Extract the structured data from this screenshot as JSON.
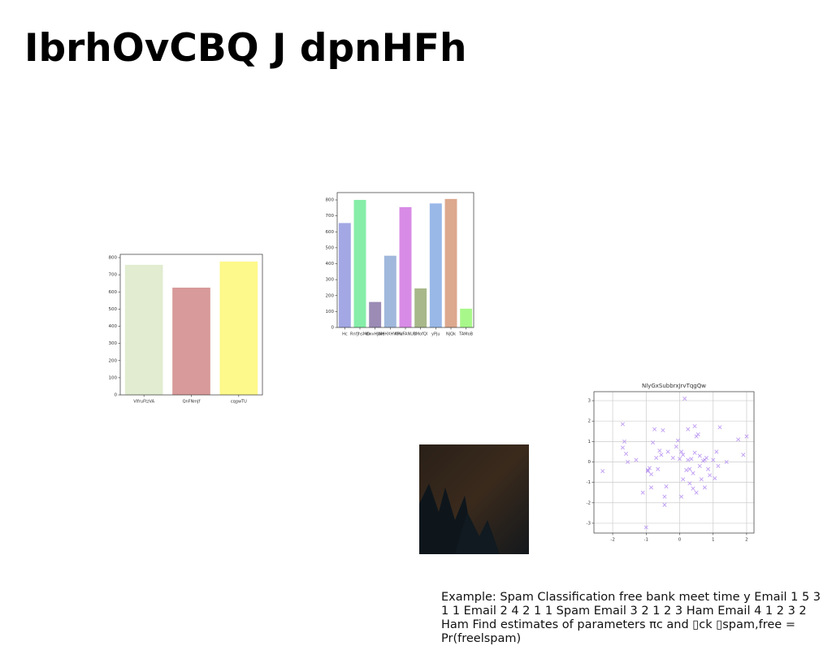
{
  "title": "IbrhOvCBQ J dpnHFh",
  "text": "Example: Spam Classification free bank meet time y Email 1 5 3 1 1 Email 2 4 2 1 1 Spam Email 3 2 1 2 3 Ham Email 4 1 2 3 2 Ham Find estimates of parameters πc and ▯ck ▯spam,free = Pr(freelspam)",
  "chart_data": [
    {
      "type": "bar",
      "categories": [
        "VIfruFtzVA",
        "QnFNmJf",
        "cqgwTU"
      ],
      "values": [
        758,
        625,
        777
      ],
      "colors": [
        "#e1ecd0",
        "#d89a9a",
        "#fdf98a"
      ],
      "ylim": [
        0,
        819
      ],
      "yticks": [
        0,
        100,
        200,
        300,
        400,
        500,
        600,
        700,
        800
      ],
      "grid": false
    },
    {
      "type": "bar",
      "categories": [
        "Hc",
        "RnfJhsMO",
        "dwvHJaM",
        "lNeHXHVmx",
        "KPUFANUR",
        "sMofQl",
        "yPju",
        "NjQk",
        "TAMoB"
      ],
      "values": [
        655,
        800,
        160,
        450,
        755,
        245,
        778,
        806,
        118
      ],
      "colors": [
        "#a3a8e4",
        "#86eea8",
        "#9b8bb5",
        "#a0b8dc",
        "#d88be6",
        "#a8b88a",
        "#99b8e8",
        "#dca88e",
        "#a8f78a"
      ],
      "ylim": [
        0,
        846
      ],
      "yticks": [
        0,
        100,
        200,
        300,
        400,
        500,
        600,
        700,
        800
      ],
      "grid": false
    },
    {
      "type": "scatter",
      "title": "NlyGxSubbrxJrvTqgQw",
      "color": "#b48cf0",
      "x": [
        -2.3,
        -1.7,
        -1.65,
        -1.7,
        -1.6,
        -1.55,
        -1.3,
        -1.1,
        -1.0,
        -0.95,
        -0.9,
        -0.85,
        -0.85,
        -0.8,
        -0.75,
        -0.7,
        -0.6,
        -0.55,
        -0.5,
        -0.45,
        -0.45,
        -0.4,
        -0.35,
        -0.2,
        -0.1,
        -0.05,
        0.0,
        0.05,
        0.05,
        0.1,
        0.1,
        0.15,
        0.2,
        0.25,
        0.25,
        0.3,
        0.3,
        0.4,
        0.4,
        0.45,
        0.45,
        0.5,
        0.5,
        0.55,
        0.6,
        0.6,
        0.65,
        0.7,
        0.75,
        0.8,
        0.85,
        0.9,
        1.0,
        1.05,
        1.1,
        1.15,
        1.2,
        1.4,
        1.75,
        1.9,
        2.0,
        -0.95,
        0.75,
        -0.65,
        0.35
      ],
      "values": [
        -0.45,
        1.85,
        1.0,
        0.7,
        0.4,
        0.0,
        0.1,
        -1.5,
        -3.2,
        -0.4,
        -0.3,
        -0.6,
        -1.25,
        0.95,
        1.6,
        0.2,
        0.55,
        0.35,
        1.55,
        -1.7,
        -2.1,
        -1.2,
        0.5,
        0.2,
        0.75,
        1.05,
        0.15,
        0.5,
        -1.7,
        0.35,
        -0.85,
        3.1,
        -0.4,
        1.6,
        0.1,
        -0.35,
        -1.05,
        -0.55,
        -1.3,
        1.75,
        0.45,
        1.25,
        -1.5,
        1.35,
        0.3,
        -0.2,
        -0.85,
        0.05,
        -1.25,
        0.2,
        -0.35,
        -0.65,
        0.1,
        -0.8,
        0.5,
        -0.2,
        1.7,
        0.0,
        1.1,
        0.35,
        1.25,
        -0.45,
        0.1,
        -0.35,
        0.15
      ],
      "xlim": [
        -2.56,
        2.22
      ],
      "ylim": [
        -3.48,
        3.44
      ],
      "xticks": [
        -2,
        -1,
        0,
        1,
        2
      ],
      "yticks": [
        -3,
        -2,
        -1,
        0,
        1,
        2,
        3
      ],
      "grid": true
    }
  ]
}
